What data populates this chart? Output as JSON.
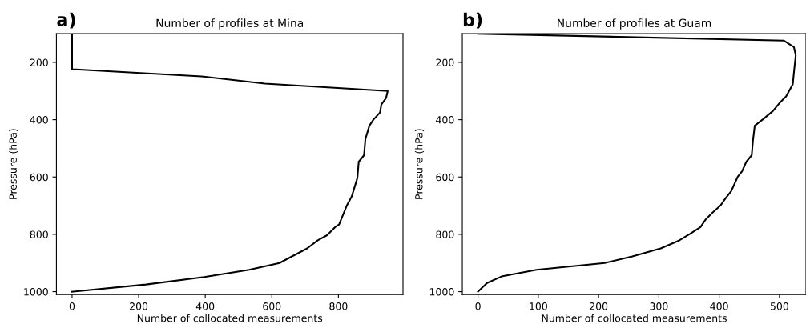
{
  "chart_data": [
    {
      "type": "line",
      "title": "Number of profiles at Mina",
      "xlabel": "Number of collocated measurements",
      "ylabel": "Pressure (hPa)",
      "annotations": [
        "a)"
      ],
      "xlim": [
        -47,
        994
      ],
      "xticks": [
        0,
        200,
        400,
        600,
        800
      ],
      "ylim": [
        1010,
        100
      ],
      "yticks": [
        200,
        400,
        600,
        800,
        1000
      ],
      "grid": false,
      "legend": false,
      "series": [
        {
          "color": "#000000",
          "x": [
            0,
            0,
            389,
            579,
            948,
            943,
            929,
            925,
            905,
            893,
            881,
            877,
            861,
            857,
            840,
            825,
            802,
            790,
            766,
            738,
            706,
            623,
            532,
            397,
            222,
            0
          ],
          "values": [
            100,
            224,
            249,
            274,
            300,
            325,
            347,
            375,
            400,
            421,
            468,
            524,
            547,
            603,
            668,
            700,
            766,
            775,
            803,
            821,
            849,
            900,
            924,
            949,
            975,
            1000
          ]
        }
      ]
    },
    {
      "type": "line",
      "title": "Number of profiles at Guam",
      "xlabel": "Number of collocated measurements",
      "ylabel": "Pressure (hPa)",
      "annotations": [
        "b)"
      ],
      "xlim": [
        -26,
        544
      ],
      "xticks": [
        0,
        100,
        200,
        300,
        400,
        500
      ],
      "ylim": [
        1010,
        100
      ],
      "yticks": [
        200,
        400,
        600,
        800,
        1000
      ],
      "grid": false,
      "legend": false,
      "series": [
        {
          "color": "#000000",
          "x": [
            0,
            507,
            524,
            527,
            524,
            522,
            511,
            500,
            489,
            473,
            459,
            456,
            454,
            445,
            438,
            431,
            420,
            411,
            402,
            389,
            378,
            369,
            352,
            334,
            303,
            256,
            210,
            97,
            39,
            15,
            0
          ],
          "values": [
            100,
            124,
            147,
            175,
            235,
            277,
            319,
            342,
            370,
            398,
            421,
            473,
            524,
            547,
            580,
            598,
            649,
            673,
            700,
            724,
            747,
            775,
            798,
            821,
            849,
            877,
            900,
            924,
            947,
            970,
            1000
          ]
        }
      ]
    }
  ]
}
